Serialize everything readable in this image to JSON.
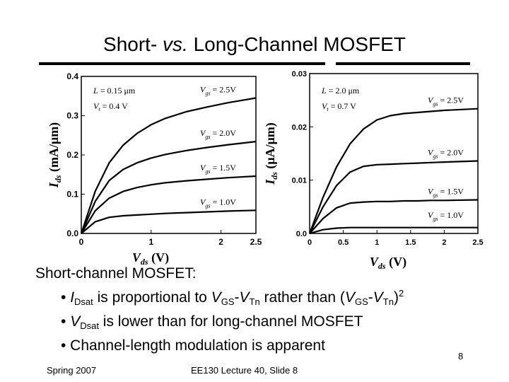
{
  "title": {
    "part1": "Short- ",
    "part2": "vs.",
    "part3": " Long-Channel MOSFET"
  },
  "chart_data": [
    {
      "type": "line",
      "xlabel": "Vds (V)",
      "ylabel": "Ids (mA/μm)",
      "xlim": [
        0,
        2.5
      ],
      "ylim": [
        0,
        0.4
      ],
      "xticks": [
        "0",
        "1",
        "2",
        "2.5"
      ],
      "yticks": [
        "0.0",
        "0.1",
        "0.2",
        "0.3",
        "0.4"
      ],
      "params": [
        "L = 0.15 μm",
        "Vt = 0.4 V"
      ],
      "series": [
        {
          "name": "Vgs = 2.5V",
          "vg": 2.5,
          "x": [
            0,
            0.2,
            0.4,
            0.6,
            0.8,
            1.0,
            1.2,
            1.5,
            1.8,
            2.1,
            2.5
          ],
          "values": [
            0,
            0.108,
            0.18,
            0.225,
            0.255,
            0.277,
            0.293,
            0.31,
            0.322,
            0.333,
            0.345
          ]
        },
        {
          "name": "Vgs = 2.0V",
          "vg": 2.0,
          "x": [
            0,
            0.2,
            0.4,
            0.6,
            0.8,
            1.0,
            1.2,
            1.5,
            1.8,
            2.1,
            2.5
          ],
          "values": [
            0,
            0.082,
            0.135,
            0.163,
            0.18,
            0.192,
            0.201,
            0.211,
            0.219,
            0.226,
            0.234
          ]
        },
        {
          "name": "Vgs = 1.5V",
          "vg": 1.5,
          "x": [
            0,
            0.2,
            0.4,
            0.6,
            0.8,
            1.0,
            1.2,
            1.5,
            1.8,
            2.1,
            2.5
          ],
          "values": [
            0,
            0.058,
            0.09,
            0.107,
            0.117,
            0.124,
            0.129,
            0.134,
            0.138,
            0.142,
            0.146
          ]
        },
        {
          "name": "Vgs = 1.0V",
          "vg": 1.0,
          "x": [
            0,
            0.2,
            0.4,
            0.6,
            0.8,
            1.0,
            1.2,
            1.5,
            1.8,
            2.1,
            2.5
          ],
          "values": [
            0,
            0.03,
            0.041,
            0.045,
            0.047,
            0.049,
            0.051,
            0.053,
            0.055,
            0.057,
            0.059
          ]
        }
      ]
    },
    {
      "type": "line",
      "xlabel": "Vds (V)",
      "ylabel": "Ids (μA/μm)",
      "xlim": [
        0,
        2.5
      ],
      "ylim": [
        0,
        0.03
      ],
      "xticks": [
        "0",
        "0.5",
        "1",
        "1.5",
        "2",
        "2.5"
      ],
      "yticks": [
        "0.0",
        "0.01",
        "0.02",
        "0.03"
      ],
      "params": [
        "L = 2.0 μm",
        "Vt = 0.7 V"
      ],
      "series": [
        {
          "name": "Vgs = 2.5V",
          "vg": 2.5,
          "x": [
            0,
            0.2,
            0.4,
            0.6,
            0.8,
            1.0,
            1.2,
            1.4,
            1.6,
            1.8,
            2.0,
            2.5
          ],
          "values": [
            0,
            0.0068,
            0.0125,
            0.0168,
            0.0196,
            0.0213,
            0.0221,
            0.0225,
            0.0227,
            0.0229,
            0.0231,
            0.0234
          ]
        },
        {
          "name": "Vgs = 2.0V",
          "vg": 2.0,
          "x": [
            0,
            0.2,
            0.4,
            0.6,
            0.8,
            1.0,
            1.2,
            1.4,
            1.6,
            1.8,
            2.0,
            2.5
          ],
          "values": [
            0,
            0.005,
            0.009,
            0.0115,
            0.0126,
            0.0129,
            0.013,
            0.0131,
            0.0132,
            0.0133,
            0.0134,
            0.0136
          ]
        },
        {
          "name": "Vgs = 1.5V",
          "vg": 1.5,
          "x": [
            0,
            0.2,
            0.4,
            0.6,
            0.8,
            1.0,
            1.2,
            1.4,
            1.6,
            1.8,
            2.0,
            2.5
          ],
          "values": [
            0,
            0.0028,
            0.0048,
            0.0057,
            0.0059,
            0.006,
            0.006,
            0.0061,
            0.0061,
            0.0062,
            0.0062,
            0.0063
          ]
        },
        {
          "name": "Vgs = 1.0V",
          "vg": 1.0,
          "x": [
            0,
            0.2,
            0.4,
            0.6,
            0.8,
            1.0,
            1.2,
            1.4,
            1.6,
            1.8,
            2.0,
            2.5
          ],
          "values": [
            0,
            0.0007,
            0.001,
            0.0011,
            0.0011,
            0.0011,
            0.0011,
            0.0011,
            0.0011,
            0.0011,
            0.0011,
            0.0011
          ]
        }
      ]
    }
  ],
  "bullets": {
    "heading": "Short-channel MOSFET:",
    "b1": {
      "a": "• ",
      "i1": "I",
      "s1": "Dsat",
      "t1": " is proportional to ",
      "v1": "V",
      "s2": "GS",
      "t2": "-",
      "v2": "V",
      "s3": "Tn",
      "t3": " rather than (",
      "v3": "V",
      "s4": "GS",
      "t4": "-",
      "v4": "V",
      "s5": "Tn",
      "t5": ")",
      "sup": "2"
    },
    "b2": {
      "a": "• ",
      "v": "V",
      "s": "Dsat",
      "t": " is lower than for long-channel MOSFET"
    },
    "b3": "• Channel-length modulation is apparent"
  },
  "footer": {
    "left": "Spring 2007",
    "center": "EE130 Lecture 40, Slide 8",
    "page": "8"
  }
}
